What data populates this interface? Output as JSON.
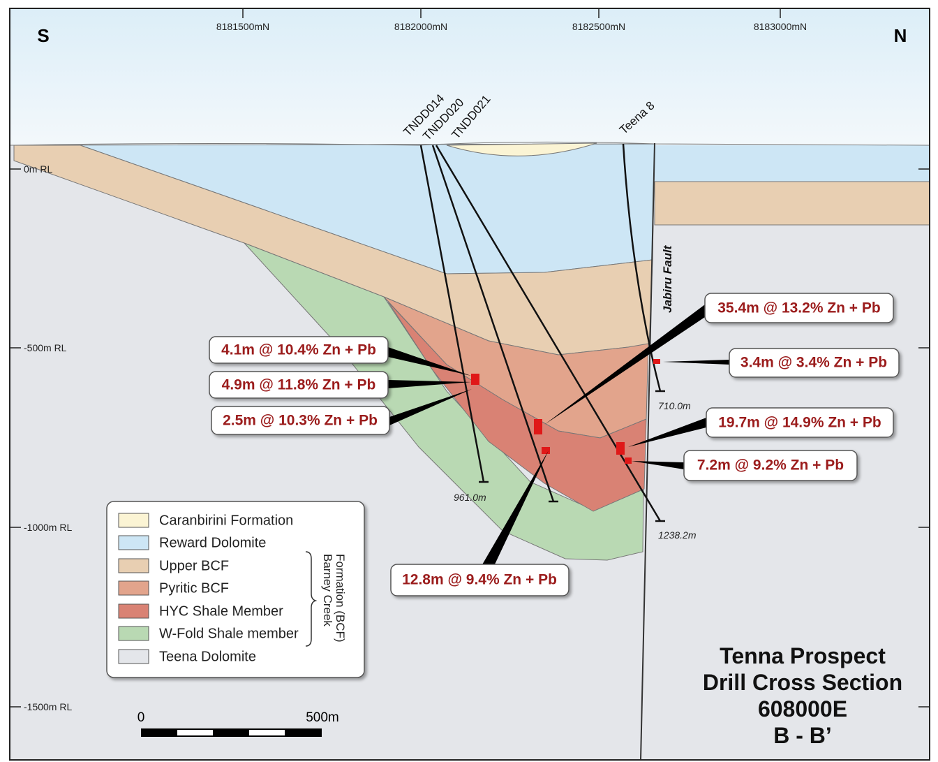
{
  "directions": {
    "south": "S",
    "north": "N"
  },
  "northings": [
    "8181500mN",
    "8182000mN",
    "8182500mN",
    "8183000mN"
  ],
  "elevations": [
    "0m RL",
    "-500m RL",
    "-1000m RL",
    "-1500m RL"
  ],
  "drill_holes": [
    {
      "name": "TNDD014",
      "end_depth": "961.0m"
    },
    {
      "name": "TNDD020"
    },
    {
      "name": "TNDD021",
      "end_depth": "1238.2m"
    },
    {
      "name": "Teena 8",
      "end_depth": "710.0m"
    }
  ],
  "fault": "Jabiru Fault",
  "intercepts": [
    "4.1m @ 10.4% Zn + Pb",
    "4.9m @ 11.8% Zn + Pb",
    "2.5m @ 10.3% Zn + Pb",
    "35.4m @ 13.2% Zn + Pb",
    "3.4m @ 3.4% Zn + Pb",
    "19.7m @ 14.9% Zn + Pb",
    "7.2m @ 9.2% Zn + Pb",
    "12.8m @ 9.4% Zn + Pb"
  ],
  "legend": {
    "items": [
      "Caranbirini Formation",
      "Reward Dolomite",
      "Upper BCF",
      "Pyritic BCF",
      "HYC Shale Member",
      "W-Fold Shale member",
      "Teena Dolomite"
    ],
    "group_label": [
      "Barney Creek",
      "Formation (BCF)"
    ]
  },
  "scale": {
    "start": "0",
    "end": "500m"
  },
  "title": [
    "Tenna Prospect",
    "Drill Cross Section",
    "608000E",
    "B - B’"
  ]
}
